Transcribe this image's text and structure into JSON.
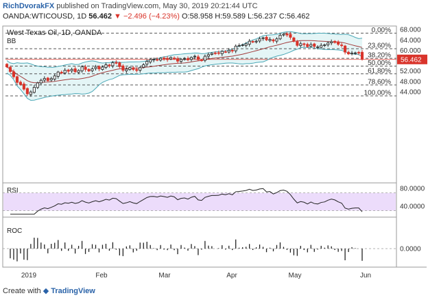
{
  "header": {
    "author": "RichDvorakFX",
    "published": "published on TradingView.com, May 30, 2019 20:21:44 UTC"
  },
  "symbol_line": {
    "symbol": "OANDA:WTICOUSD, 1D",
    "last": "56.462",
    "change": "−2.496 (−4.23%)",
    "ohlc": "O:58.958 H:59.589 L:56.237 C:56.462"
  },
  "footer": {
    "prefix": "Create with",
    "brand": "TradingView"
  },
  "colors": {
    "up": "#2b2b2b",
    "down": "#d9342b",
    "bb_fill": "#e4f5f6",
    "bb_line": "#49a7b6",
    "ma": "#a23a3a",
    "rsi_band": "#ecdcfb",
    "rsi_line": "#222222",
    "price_label": "#d9342b"
  },
  "chart_data": [
    {
      "type": "candlestick",
      "title": "West Texas Oil, 1D, OANDA",
      "indicator": "BB",
      "x_labels": [
        "2019",
        "Feb",
        "Mar",
        "Apr",
        "May",
        "Jun"
      ],
      "y_ticks": [
        "44.000",
        "48.000",
        "52.000",
        "56.000",
        "60.000",
        "64.000",
        "68.000"
      ],
      "ylim": [
        41.5,
        68.5
      ],
      "last_price_label": "56.462",
      "fib_levels": [
        {
          "label": "0.00%",
          "value": 66.6
        },
        {
          "label": "23.60%",
          "value": 60.6
        },
        {
          "label": "38.20%",
          "value": 56.9
        },
        {
          "label": "50.00%",
          "value": 53.9
        },
        {
          "label": "61.80%",
          "value": 50.9
        },
        {
          "label": "78.60%",
          "value": 46.6
        },
        {
          "label": "100.00%",
          "value": 42.4
        }
      ],
      "close": [
        53.6,
        51.8,
        49.8,
        47.6,
        46.8,
        45.0,
        43.2,
        43.9,
        45.7,
        47.4,
        48.4,
        49.1,
        48.3,
        49.1,
        50.1,
        51.6,
        51.2,
        52.3,
        51.9,
        52.6,
        51.7,
        52.2,
        53.6,
        52.6,
        52.0,
        52.8,
        53.5,
        52.8,
        53.5,
        54.4,
        54.0,
        55.2,
        55.0,
        53.7,
        52.3,
        52.7,
        53.3,
        52.6,
        52.2,
        53.3,
        54.4,
        55.7,
        56.4,
        56.5,
        56.2,
        56.9,
        56.7,
        56.4,
        57.2,
        56.9,
        55.8,
        56.5,
        56.7,
        56.3,
        57.2,
        57.7,
        56.4,
        56.2,
        57.7,
        58.3,
        58.8,
        58.8,
        58.9,
        59.6,
        59.4,
        60.0,
        59.7,
        61.6,
        61.8,
        62.1,
        62.5,
        63.5,
        63.2,
        63.5,
        64.4,
        64.8,
        64.0,
        64.2,
        63.6,
        64.4,
        65.8,
        66.2,
        65.9,
        65.0,
        63.5,
        61.9,
        62.5,
        62.2,
        61.4,
        62.2,
        61.5,
        61.3,
        61.9,
        62.1,
        62.8,
        63.3,
        63.0,
        62.3,
        61.8,
        59.3,
        58.6,
        58.9,
        59.0,
        59.0,
        56.5
      ],
      "rsi": {
        "ylim": [
          20,
          88
        ],
        "ticks": [
          "40.0000",
          "80.0000"
        ],
        "band": [
          30,
          70
        ]
      },
      "roc": {
        "label": "ROC",
        "ticks": [
          "0.0000"
        ]
      }
    }
  ]
}
